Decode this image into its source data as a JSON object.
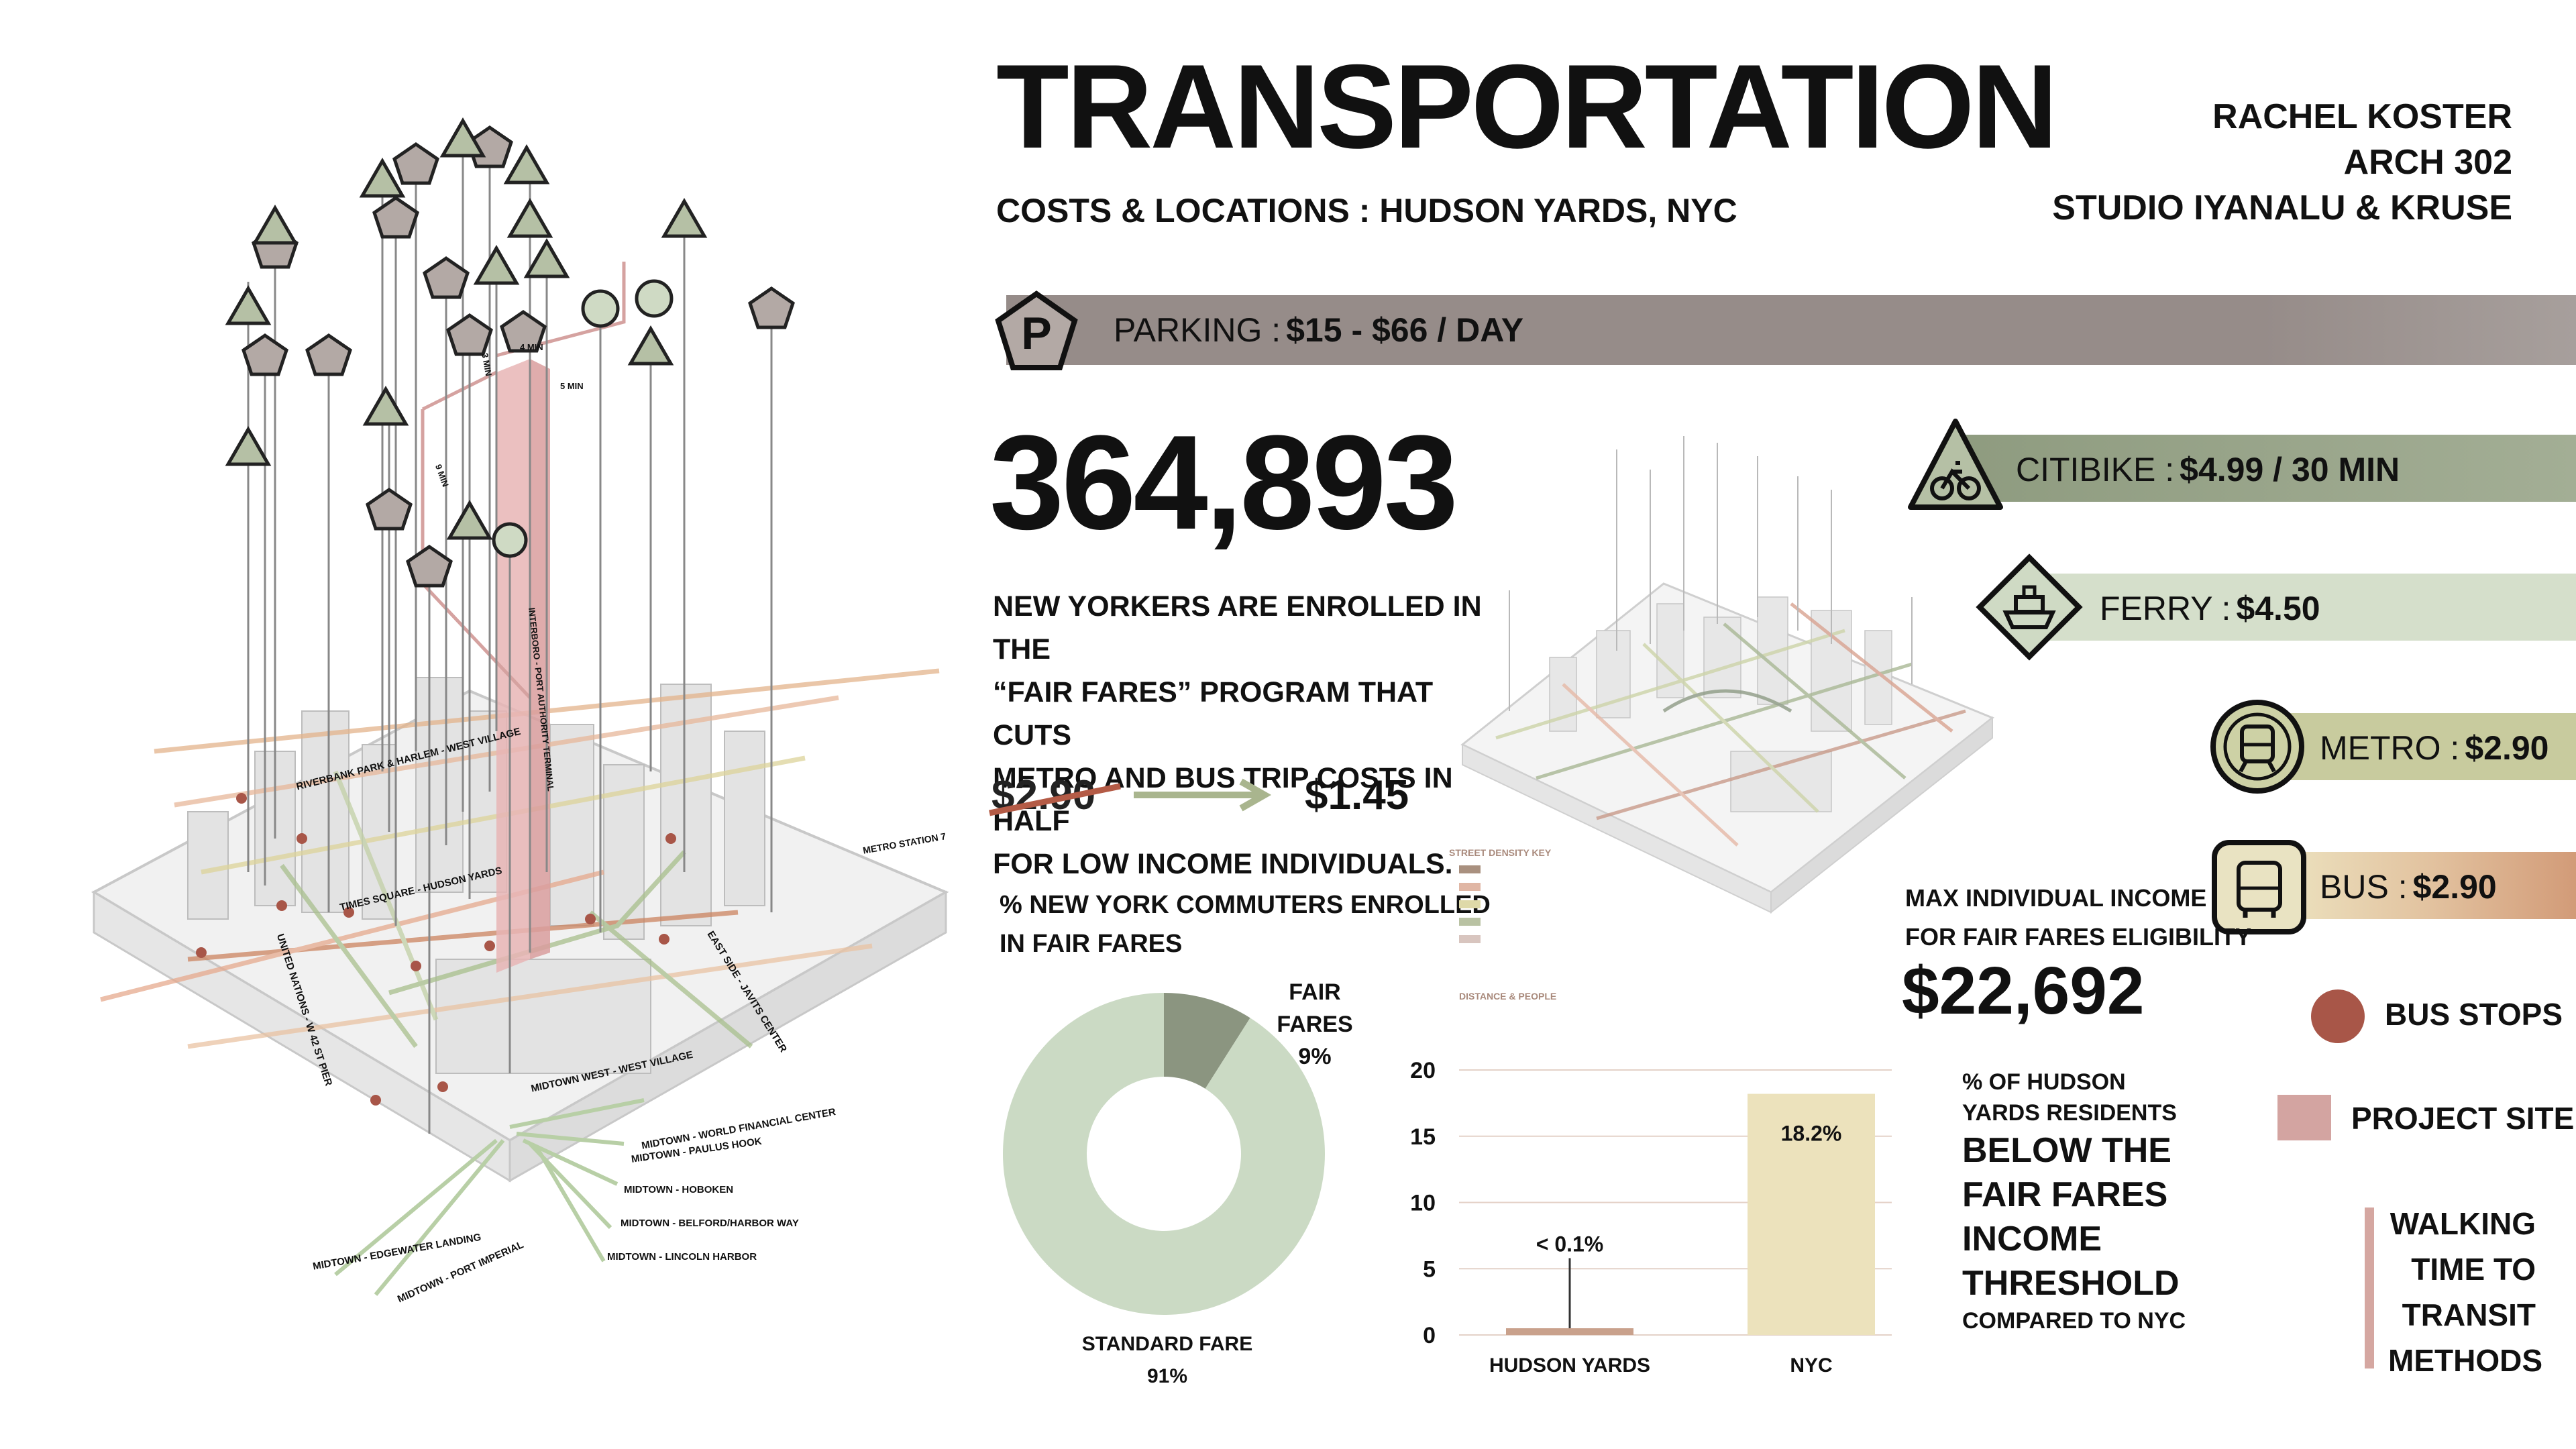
{
  "header": {
    "title": "TRANSPORTATION",
    "subtitle": "COSTS & LOCATIONS : HUDSON YARDS, NYC",
    "author_lines": [
      "RACHEL KOSTER",
      "ARCH 302",
      "STUDIO IYANALU & KRUSE"
    ]
  },
  "parking": {
    "label": "PARKING : ",
    "value": "$15 - $66 / DAY",
    "color": "#968c89"
  },
  "modes": [
    {
      "name": "CITIBIKE : ",
      "value": "$4.99 / 30 MIN",
      "color": "#8e9b7f",
      "icon": "bike-icon"
    },
    {
      "name": "FERRY : ",
      "value": "$4.50",
      "color": "#d5dfcb",
      "icon": "ship-icon"
    },
    {
      "name": "METRO : ",
      "value": "$2.90",
      "color": "#c8cb9e",
      "icon": "train-icon"
    },
    {
      "name": "BUS : ",
      "value": "$2.90",
      "color": "#d4a07a",
      "icon": "bus-icon"
    }
  ],
  "fair_fares": {
    "enrolled_count": "364,893",
    "description_lines": [
      "NEW YORKERS ARE ENROLLED IN THE",
      "“FAIR FARES” PROGRAM THAT CUTS",
      "METRO AND BUS TRIP COSTS IN HALF",
      "FOR LOW INCOME INDIVIDUALS."
    ],
    "old_fare": "$2.90",
    "new_fare": "$1.45",
    "max_income_label_lines": [
      "MAX INDIVIDUAL INCOME",
      "FOR FAIR FARES ELIGIBILITY"
    ],
    "max_income": "$22,692"
  },
  "donut": {
    "title_lines": [
      "% NEW YORK COMMUTERS ENROLLED",
      "IN FAIR FARES"
    ],
    "fair_label": "FAIR FARES",
    "fair_pct": "9%",
    "standard_label": "STANDARD FARE",
    "standard_pct": "91%"
  },
  "bar_caption": {
    "small_lines": [
      "% OF HUDSON",
      "YARDS RESIDENTS"
    ],
    "big_lines": [
      "BELOW THE",
      "FAIR FARES",
      "INCOME",
      "THRESHOLD"
    ],
    "tail": "COMPARED TO NYC"
  },
  "legend": {
    "bus_stops": "BUS STOPS",
    "project_site": "PROJECT SITE",
    "walking_lines": [
      "WALKING",
      "TIME TO",
      "TRANSIT",
      "METHODS"
    ]
  },
  "density_key": {
    "title": "STREET DENSITY KEY",
    "footer": "DISTANCE & PEOPLE"
  },
  "map_labels": {
    "routes": [
      "RIVERBANK PARK & HARLEM - WEST VILLAGE",
      "TIMES SQUARE - HUDSON YARDS",
      "MIDTOWN WEST - WEST VILLAGE",
      "METRO STATION 7",
      "UNITED NATIONS - W 42 ST PIER",
      "EAST SIDE - JAVITS CENTER",
      "INTERBORO - PORT AUTHORITY TERMINAL"
    ],
    "ferries": [
      "MIDTOWN - WORLD FINANCIAL CENTER",
      "MIDTOWN - PAULUS HOOK",
      "MIDTOWN - HOBOKEN",
      "MIDTOWN - BELFORD/HARBOR WAY",
      "MIDTOWN - LINCOLN HARBOR",
      "MIDTOWN - EDGEWATER LANDING",
      "MIDTOWN - PORT IMPERIAL"
    ],
    "walk_times": [
      "3 MIN",
      "4 MIN",
      "5 MIN",
      "9 MIN"
    ]
  },
  "chart_data": [
    {
      "type": "pie",
      "title": "% NEW YORK COMMUTERS ENROLLED IN FAIR FARES",
      "categories": [
        "FAIR FARES",
        "STANDARD FARE"
      ],
      "values": [
        9,
        91
      ],
      "colors": [
        "#8b9580",
        "#cbdac4"
      ],
      "donut": true
    },
    {
      "type": "bar",
      "title": "",
      "categories": [
        "HUDSON YARDS",
        "NYC"
      ],
      "values": [
        0.1,
        18.2
      ],
      "data_labels": [
        "< 0.1%",
        "18.2%"
      ],
      "ylim": [
        0,
        20
      ],
      "yticks": [
        0,
        5,
        10,
        15,
        20
      ],
      "colors": [
        "#c9a18c",
        "#ece2bc"
      ],
      "grid": true
    }
  ]
}
